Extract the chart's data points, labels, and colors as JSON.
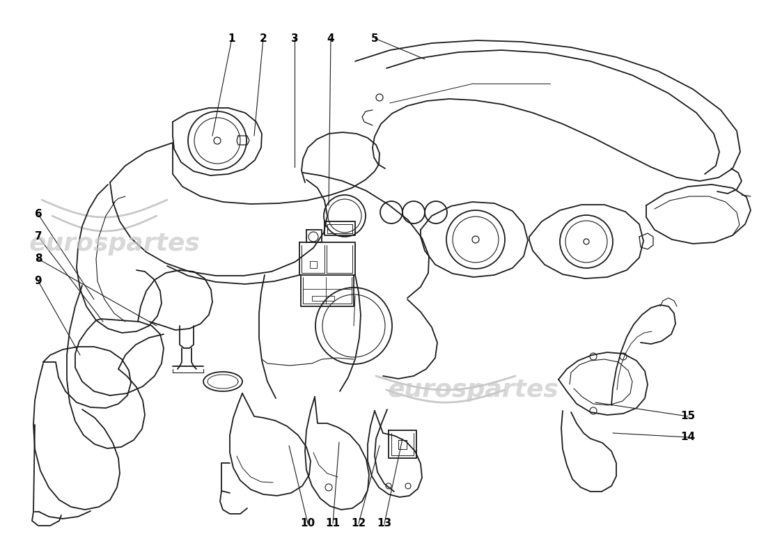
{
  "background_color": "#ffffff",
  "line_color": "#1a1a1a",
  "watermark_color": "#c8c8c8",
  "figsize": [
    11.0,
    8.0
  ],
  "dpi": 100,
  "part_configs": [
    [
      1,
      333,
      55,
      305,
      195
    ],
    [
      2,
      378,
      55,
      365,
      195
    ],
    [
      3,
      423,
      55,
      423,
      240
    ],
    [
      4,
      475,
      55,
      472,
      295
    ],
    [
      5,
      538,
      55,
      610,
      85
    ],
    [
      6,
      55,
      308,
      135,
      430
    ],
    [
      7,
      55,
      340,
      148,
      462
    ],
    [
      8,
      55,
      372,
      225,
      468
    ],
    [
      9,
      55,
      404,
      115,
      510
    ],
    [
      10,
      442,
      752,
      415,
      640
    ],
    [
      11,
      478,
      752,
      487,
      635
    ],
    [
      12,
      515,
      752,
      545,
      640
    ],
    [
      13,
      552,
      752,
      578,
      630
    ],
    [
      14,
      988,
      628,
      880,
      622
    ],
    [
      15,
      988,
      598,
      855,
      578
    ]
  ]
}
